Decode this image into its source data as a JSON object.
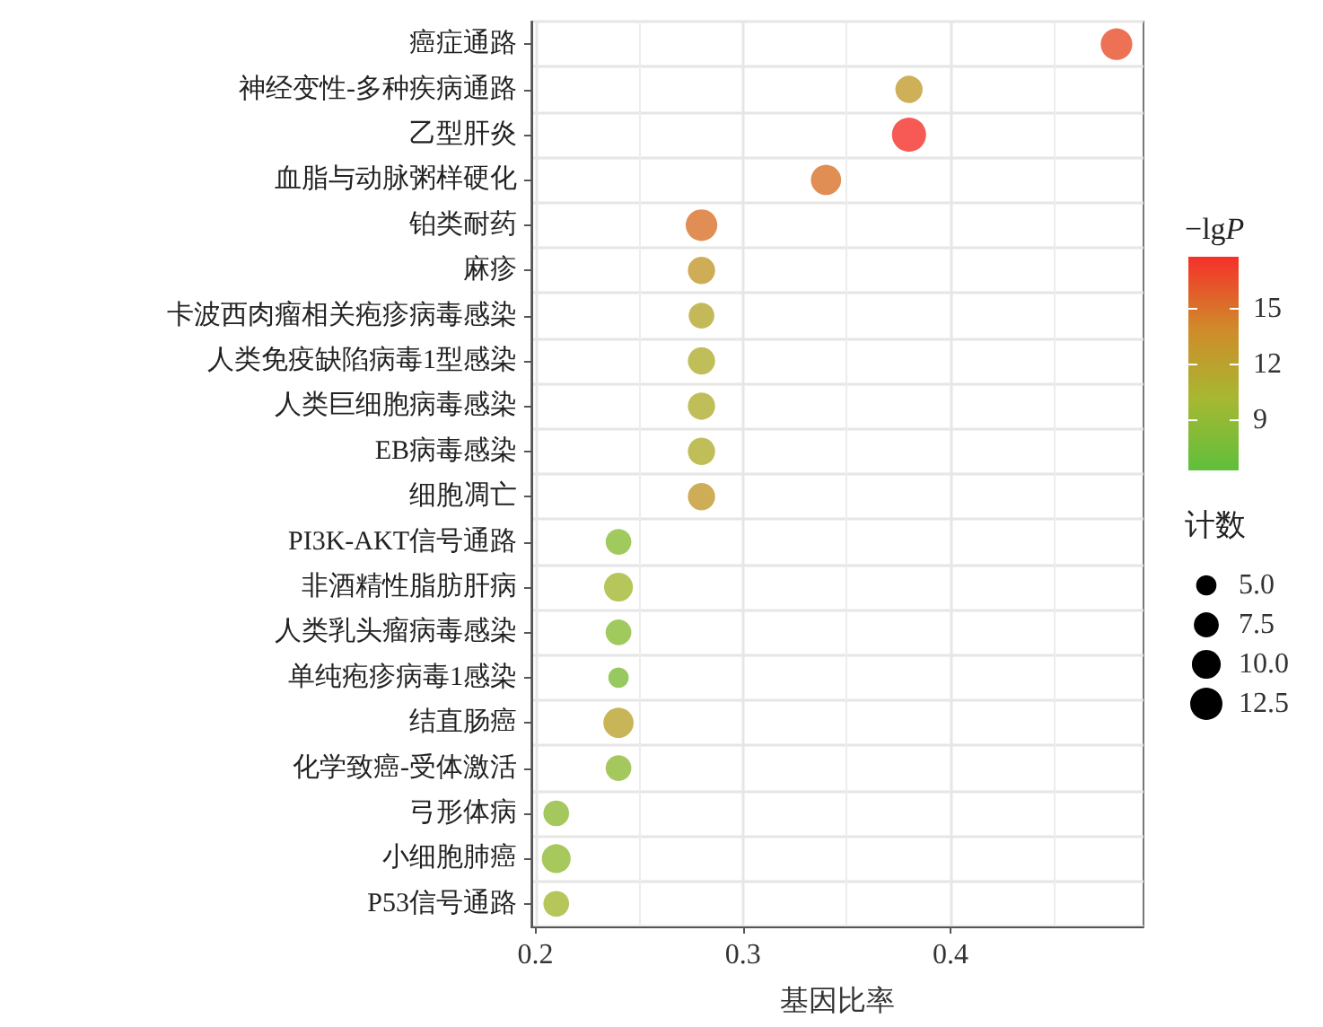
{
  "chart_data": {
    "type": "bubble",
    "xlabel": "基因比率",
    "clabel": "−lgP",
    "legend_title": "计数",
    "categories": [
      "癌症通路",
      "神经变性-多种疾病通路",
      "乙型肝炎",
      "血脂与动脉粥样硬化",
      "铂类耐药",
      "麻疹",
      "卡波西肉瘤相关疱疹病毒感染",
      "人类免疫缺陷病毒1型感染",
      "人类巨细胞病毒感染",
      "EB病毒感染",
      "细胞凋亡",
      "PI3K-AKT信号通路",
      "非酒精性脂肪肝病",
      "人类乳头瘤病毒感染",
      "单纯疱疹病毒1感染",
      "结直肠癌",
      "化学致癌-受体激活",
      "弓形体病",
      "小细胞肺癌",
      "P53信号通路"
    ],
    "values": [
      0.48,
      0.38,
      0.38,
      0.34,
      0.28,
      0.28,
      0.28,
      0.28,
      0.28,
      0.28,
      0.28,
      0.24,
      0.24,
      0.24,
      0.24,
      0.24,
      0.24,
      0.21,
      0.21,
      0.21
    ],
    "sizes": [
      12,
      9,
      14,
      11,
      12,
      9,
      8,
      9,
      9,
      9,
      9,
      8,
      10,
      8,
      5,
      11,
      8,
      8,
      10,
      8
    ],
    "size_legend": [
      {
        "value": 5,
        "label": "5.0"
      },
      {
        "value": 7.5,
        "label": "7.5"
      },
      {
        "value": 10,
        "label": "10.0"
      },
      {
        "value": 12.5,
        "label": "12.5"
      }
    ],
    "cvalues": [
      16.5,
      12.5,
      17.8,
      15,
      15,
      12.8,
      11.5,
      11,
      11,
      11,
      12.8,
      8.5,
      10,
      8.5,
      8,
      12,
      8.8,
      8.8,
      9,
      10
    ],
    "clim": [
      6.3,
      17.8
    ],
    "cticks": [
      9,
      12,
      15
    ],
    "orientation": "horizontal",
    "xlim": [
      0.198,
      0.493
    ],
    "xticks": [
      0.2,
      {
        "value": 0.25,
        "label": null
      },
      0.3,
      {
        "value": 0.35,
        "label": null
      },
      0.4,
      {
        "value": 0.45,
        "label": null
      }
    ],
    "grid": true
  }
}
